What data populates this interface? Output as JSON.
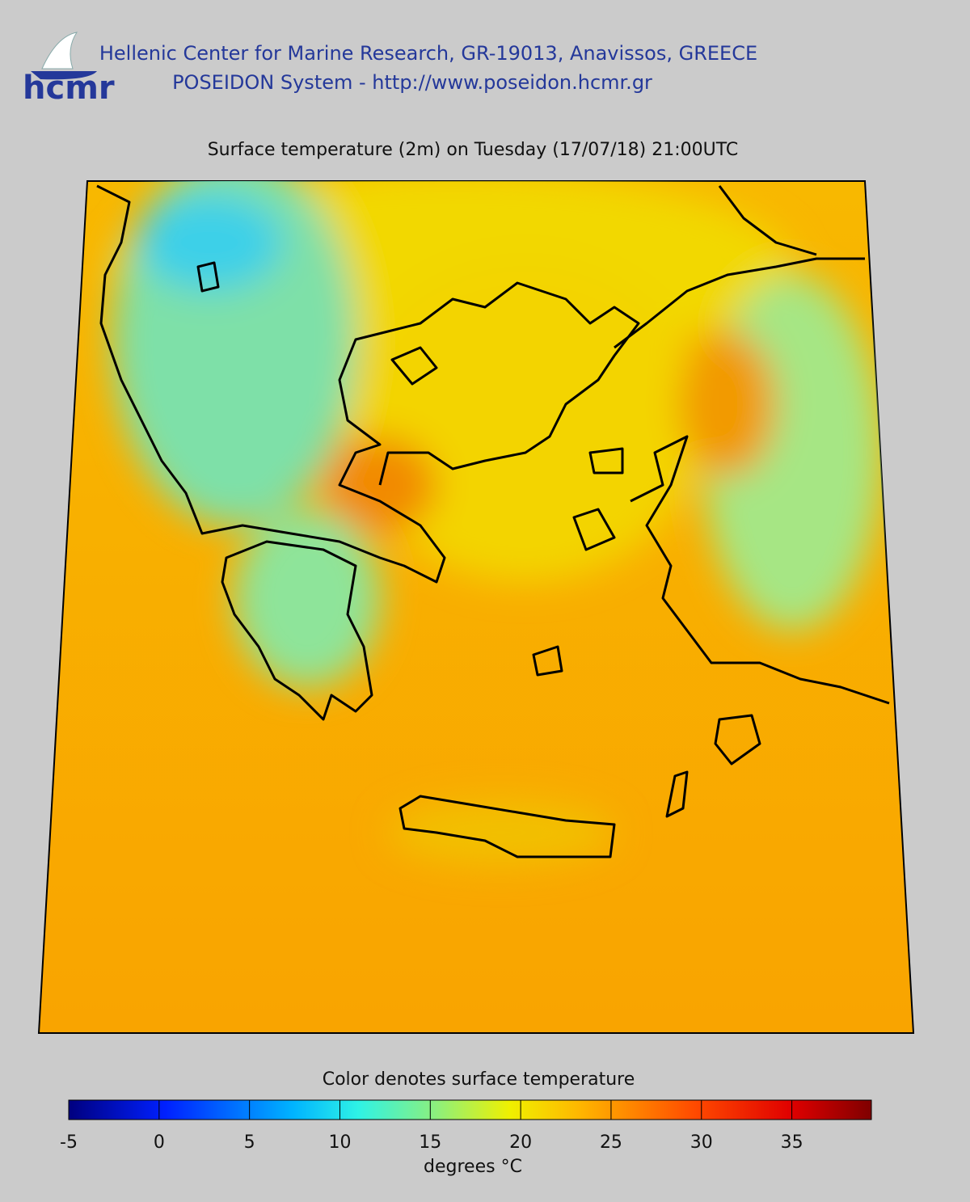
{
  "header": {
    "logo_text": "hcmr",
    "org_line": "Hellenic Center for Marine Research, GR-19013, Anavissos, GREECE",
    "system_line": "POSEIDON System - http://www.poseidon.hcmr.gr"
  },
  "map": {
    "title": "Surface temperature (2m) on Tuesday (17/07/18) 21:00UTC"
  },
  "colorbar": {
    "title": "Color denotes surface temperature",
    "lim": [
      -5,
      39.4
    ],
    "ticks": [
      -5,
      0,
      5,
      10,
      15,
      20,
      25,
      30,
      35
    ],
    "label": "degrees °C"
  }
}
